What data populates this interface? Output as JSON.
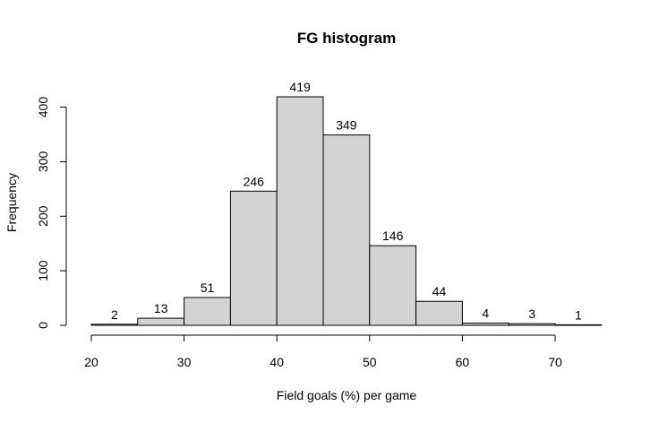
{
  "chart_data": {
    "type": "bar",
    "title": "FG histogram",
    "xlabel": "Field goals (%) per game",
    "ylabel": "Frequency",
    "bins": [
      {
        "start": 20,
        "end": 25,
        "count": 2
      },
      {
        "start": 25,
        "end": 30,
        "count": 13
      },
      {
        "start": 30,
        "end": 35,
        "count": 51
      },
      {
        "start": 35,
        "end": 40,
        "count": 246
      },
      {
        "start": 40,
        "end": 45,
        "count": 419
      },
      {
        "start": 45,
        "end": 50,
        "count": 349
      },
      {
        "start": 50,
        "end": 55,
        "count": 146
      },
      {
        "start": 55,
        "end": 60,
        "count": 44
      },
      {
        "start": 60,
        "end": 65,
        "count": 4
      },
      {
        "start": 65,
        "end": 70,
        "count": 3
      },
      {
        "start": 70,
        "end": 75,
        "count": 1
      }
    ],
    "xticks": [
      "20",
      "30",
      "40",
      "50",
      "60",
      "70"
    ],
    "yticks": [
      "0",
      "100",
      "200",
      "300",
      "400"
    ],
    "xlim": [
      20,
      75
    ],
    "ylim": [
      0,
      419
    ],
    "bar_color": "#d3d3d3",
    "grid": false,
    "legend": "none"
  }
}
